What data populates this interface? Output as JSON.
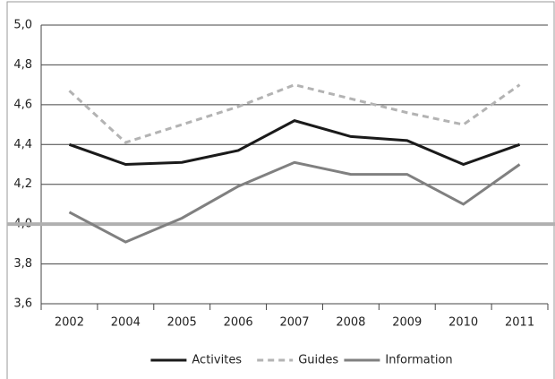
{
  "chart_data": {
    "type": "line",
    "categories": [
      "2002",
      "2004",
      "2005",
      "2006",
      "2007",
      "2008",
      "2009",
      "2010",
      "2011"
    ],
    "series": [
      {
        "name": "Activites",
        "color": "#1a1a1a",
        "dash": false,
        "values": [
          4.4,
          4.3,
          4.31,
          4.37,
          4.52,
          4.44,
          4.42,
          4.3,
          4.4
        ]
      },
      {
        "name": "Guides",
        "color": "#b3b3b3",
        "dash": true,
        "values": [
          4.67,
          4.41,
          4.5,
          4.59,
          4.7,
          4.63,
          4.56,
          4.5,
          4.7
        ]
      },
      {
        "name": "Information",
        "color": "#808080",
        "dash": false,
        "values": [
          4.06,
          3.91,
          4.03,
          4.19,
          4.31,
          4.25,
          4.25,
          4.1,
          4.3
        ]
      }
    ],
    "ylim": [
      3.6,
      5.0
    ],
    "yticks": [
      {
        "value": 3.6,
        "label": "3,6"
      },
      {
        "value": 3.8,
        "label": "3,8"
      },
      {
        "value": 4.0,
        "label": "4,0"
      },
      {
        "value": 4.2,
        "label": "4,2"
      },
      {
        "value": 4.4,
        "label": "4,4"
      },
      {
        "value": 4.6,
        "label": "4,6"
      },
      {
        "value": 4.8,
        "label": "4,8"
      },
      {
        "value": 5.0,
        "label": "5,0"
      }
    ],
    "reference_line": {
      "value": 4.0,
      "color": "#b0b0b0"
    },
    "grid": true,
    "legend": "bottom"
  }
}
